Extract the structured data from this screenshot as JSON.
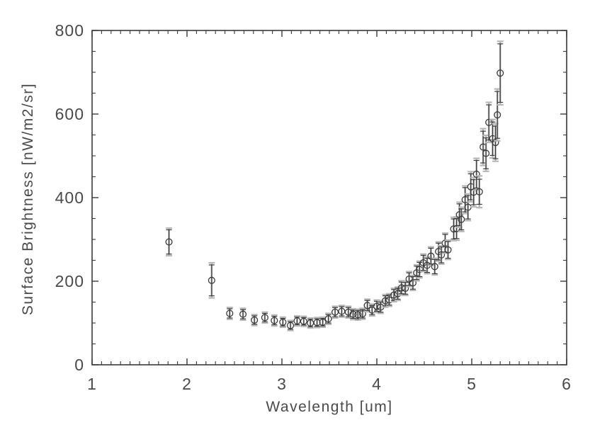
{
  "page": {
    "background": "#ffffff"
  },
  "chart_data": {
    "type": "scatter",
    "title": "",
    "xlabel": "Wavelength [um]",
    "ylabel": "Surface Brightness [nW/m2/sr]",
    "xlim": [
      1,
      6
    ],
    "ylim": [
      0,
      800
    ],
    "xticks": [
      1,
      2,
      3,
      4,
      5,
      6
    ],
    "yticks": [
      0,
      200,
      400,
      600,
      800
    ],
    "x_minor_step": 0.1,
    "y_minor_step": 50,
    "grid": false,
    "legend": null,
    "marker": "open-circle",
    "error_bars": {
      "statistical": "black thin bars with caps",
      "systematic": "grey thick bars drawn behind"
    },
    "colors": {
      "axis": "#3a3a3a",
      "text": "#4a4a4a",
      "marker": "#3a3a3a",
      "stat_error": "#3a3a3a",
      "sys_error": "#b8b8b8"
    },
    "points_format": [
      "wavelength_um",
      "brightness_nW_m2_sr",
      "stat_err",
      "sys_err"
    ],
    "points": [
      [
        1.81,
        294,
        29,
        33
      ],
      [
        2.26,
        202,
        37,
        42
      ],
      [
        2.45,
        123,
        11,
        14
      ],
      [
        2.59,
        121,
        11,
        14
      ],
      [
        2.71,
        107,
        10,
        13
      ],
      [
        2.82,
        113,
        10,
        13
      ],
      [
        2.92,
        106,
        10,
        13
      ],
      [
        3.01,
        102,
        9,
        12
      ],
      [
        3.09,
        94,
        9,
        12
      ],
      [
        3.16,
        105,
        9,
        12
      ],
      [
        3.23,
        104,
        9,
        12
      ],
      [
        3.3,
        100,
        9,
        12
      ],
      [
        3.37,
        101,
        9,
        12
      ],
      [
        3.43,
        102,
        9,
        12
      ],
      [
        3.49,
        110,
        10,
        13
      ],
      [
        3.56,
        126,
        11,
        14
      ],
      [
        3.63,
        128,
        11,
        14
      ],
      [
        3.7,
        126,
        11,
        14
      ],
      [
        3.75,
        121,
        10,
        13
      ],
      [
        3.8,
        120,
        10,
        13
      ],
      [
        3.85,
        122,
        10,
        13
      ],
      [
        3.9,
        142,
        12,
        15
      ],
      [
        3.95,
        131,
        11,
        14
      ],
      [
        4.0,
        140,
        12,
        15
      ],
      [
        4.04,
        138,
        12,
        15
      ],
      [
        4.09,
        153,
        12,
        15
      ],
      [
        4.13,
        155,
        12,
        15
      ],
      [
        4.18,
        167,
        13,
        16
      ],
      [
        4.22,
        170,
        13,
        16
      ],
      [
        4.26,
        184,
        14,
        17
      ],
      [
        4.3,
        183,
        14,
        17
      ],
      [
        4.34,
        205,
        15,
        18
      ],
      [
        4.38,
        196,
        15,
        18
      ],
      [
        4.42,
        220,
        16,
        19
      ],
      [
        4.45,
        228,
        17,
        20
      ],
      [
        4.49,
        244,
        18,
        21
      ],
      [
        4.53,
        238,
        17,
        20
      ],
      [
        4.57,
        260,
        19,
        22
      ],
      [
        4.61,
        235,
        17,
        20
      ],
      [
        4.65,
        271,
        20,
        23
      ],
      [
        4.68,
        263,
        19,
        22
      ],
      [
        4.72,
        291,
        21,
        24
      ],
      [
        4.75,
        275,
        20,
        23
      ],
      [
        4.81,
        325,
        24,
        28
      ],
      [
        4.84,
        326,
        24,
        28
      ],
      [
        4.87,
        359,
        26,
        30
      ],
      [
        4.89,
        348,
        25,
        29
      ],
      [
        4.93,
        395,
        29,
        33
      ],
      [
        4.96,
        377,
        28,
        32
      ],
      [
        4.99,
        426,
        31,
        36
      ],
      [
        5.02,
        413,
        30,
        35
      ],
      [
        5.05,
        456,
        33,
        38
      ],
      [
        5.08,
        414,
        30,
        38
      ],
      [
        5.12,
        521,
        38,
        44
      ],
      [
        5.15,
        506,
        37,
        43
      ],
      [
        5.18,
        580,
        42,
        48
      ],
      [
        5.22,
        541,
        40,
        46
      ],
      [
        5.25,
        532,
        39,
        45
      ],
      [
        5.27,
        598,
        56,
        62
      ],
      [
        5.3,
        698,
        70,
        76
      ]
    ]
  }
}
